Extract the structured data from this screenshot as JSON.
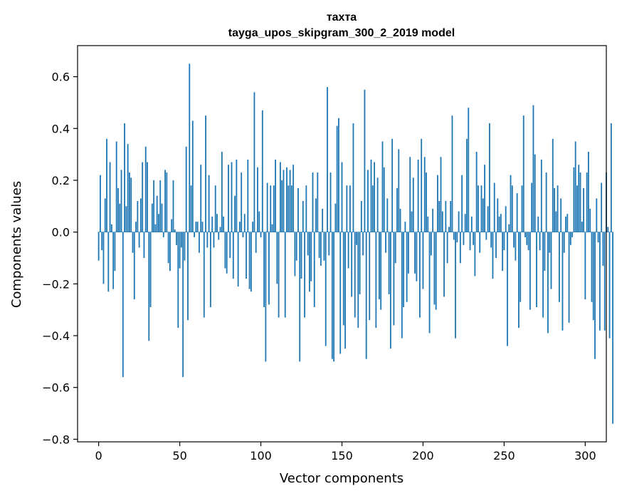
{
  "chart_data": {
    "type": "bar",
    "title": "тахта",
    "subtitle": "tayga_upos_skipgram_300_2_2019 model",
    "xlabel": "Vector components",
    "ylabel": "Components values",
    "xlim": [
      -13,
      313
    ],
    "ylim": [
      -0.81,
      0.72
    ],
    "xticks": [
      0,
      50,
      100,
      150,
      200,
      250,
      300
    ],
    "yticks": [
      -0.8,
      -0.6,
      -0.4,
      -0.2,
      0.0,
      0.2,
      0.4,
      0.6
    ],
    "xtick_labels": [
      "0",
      "50",
      "100",
      "150",
      "200",
      "250",
      "300"
    ],
    "ytick_labels": [
      "−0.8",
      "−0.6",
      "−0.4",
      "−0.2",
      "0.0",
      "0.2",
      "0.4",
      "0.6"
    ],
    "bar_color": "#1f77b4",
    "grid": false,
    "values": [
      -0.11,
      0.22,
      -0.07,
      -0.2,
      0.13,
      0.36,
      -0.23,
      0.27,
      0.03,
      -0.22,
      -0.15,
      0.35,
      0.17,
      0.11,
      0.24,
      -0.56,
      0.42,
      0.1,
      0.34,
      0.23,
      0.21,
      -0.08,
      -0.26,
      0.04,
      0.12,
      -0.06,
      0.13,
      0.27,
      -0.1,
      0.33,
      0.27,
      -0.42,
      -0.29,
      0.11,
      0.2,
      0.03,
      0.14,
      0.07,
      0.2,
      0.11,
      -0.02,
      0.24,
      0.23,
      -0.12,
      -0.15,
      0.05,
      0.2,
      0.01,
      -0.05,
      -0.37,
      -0.14,
      -0.06,
      -0.56,
      -0.11,
      0.33,
      -0.34,
      0.65,
      0.18,
      0.43,
      -0.02,
      0.04,
      0.04,
      -0.08,
      0.26,
      0.04,
      -0.33,
      0.45,
      -0.06,
      0.22,
      -0.29,
      0.06,
      -0.06,
      0.18,
      0.07,
      -0.03,
      0.02,
      0.31,
      0.06,
      -0.14,
      -0.16,
      0.26,
      -0.1,
      0.27,
      -0.18,
      0.14,
      0.28,
      -0.21,
      0.04,
      0.23,
      -0.02,
      0.07,
      -0.18,
      0.28,
      -0.22,
      -0.23,
      0.04,
      0.54,
      -0.08,
      0.25,
      0.08,
      -0.02,
      0.47,
      -0.29,
      -0.5,
      0.19,
      -0.28,
      0.18,
      0.03,
      0.18,
      0.28,
      -0.2,
      -0.33,
      0.27,
      0.2,
      0.24,
      -0.33,
      0.25,
      0.18,
      0.24,
      0.18,
      0.26,
      -0.17,
      -0.11,
      0.17,
      -0.5,
      -0.18,
      0.12,
      -0.33,
      0.18,
      -0.09,
      -0.23,
      -0.19,
      0.23,
      -0.29,
      0.13,
      0.23,
      -0.1,
      -0.13,
      0.09,
      -0.11,
      -0.44,
      0.56,
      -0.09,
      0.23,
      -0.49,
      -0.5,
      0.11,
      0.41,
      0.44,
      -0.47,
      0.27,
      -0.36,
      -0.45,
      0.18,
      -0.14,
      0.18,
      -0.25,
      0.42,
      -0.33,
      -0.05,
      -0.37,
      -0.24,
      0.12,
      -0.09,
      0.55,
      -0.49,
      0.24,
      -0.34,
      0.28,
      0.18,
      0.27,
      -0.37,
      0.21,
      -0.26,
      -0.3,
      0.35,
      0.25,
      -0.08,
      0.13,
      -0.24,
      -0.45,
      0.36,
      -0.36,
      -0.12,
      0.17,
      0.32,
      0.09,
      -0.41,
      -0.29,
      0.04,
      -0.27,
      -0.16,
      0.29,
      0.08,
      0.21,
      -0.16,
      -0.19,
      0.28,
      -0.33,
      0.36,
      -0.22,
      0.29,
      0.23,
      0.06,
      -0.39,
      -0.09,
      0.09,
      -0.28,
      -0.3,
      0.22,
      0.12,
      0.29,
      0.08,
      -0.25,
      0.12,
      -0.12,
      0.02,
      0.12,
      0.45,
      -0.03,
      -0.41,
      -0.04,
      0.08,
      -0.12,
      0.22,
      -0.05,
      0.07,
      0.36,
      0.48,
      -0.07,
      0.06,
      -0.05,
      -0.17,
      0.31,
      0.18,
      -0.08,
      0.18,
      0.13,
      0.26,
      -0.03,
      0.1,
      0.42,
      -0.06,
      -0.18,
      0.19,
      -0.1,
      0.13,
      0.06,
      0.07,
      -0.15,
      -0.07,
      0.1,
      -0.44,
      0.03,
      0.22,
      0.18,
      -0.06,
      -0.11,
      0.15,
      -0.37,
      -0.27,
      0.18,
      0.45,
      -0.02,
      -0.05,
      -0.07,
      -0.3,
      0.19,
      0.49,
      0.3,
      -0.29,
      0.06,
      -0.07,
      0.28,
      -0.33,
      -0.15,
      0.23,
      -0.39,
      -0.08,
      -0.22,
      0.36,
      0.17,
      0.08,
      0.18,
      -0.27,
      0.13,
      -0.38,
      -0.08,
      0.06,
      0.07,
      -0.35,
      -0.05,
      -0.02,
      0.25,
      0.35,
      0.18,
      0.26,
      0.23,
      0.04,
      0.17,
      -0.26,
      0.23,
      0.31,
      0.09,
      -0.27,
      -0.34,
      -0.49,
      0.13,
      -0.04,
      -0.38,
      0.19,
      -0.13,
      -0.38,
      0.23,
      0.02,
      -0.41,
      0.42,
      -0.74
    ]
  }
}
